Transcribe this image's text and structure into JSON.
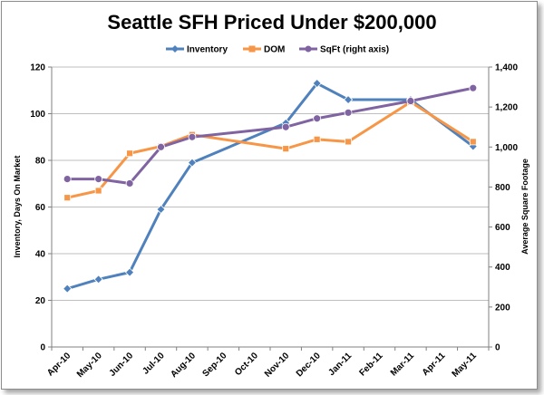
{
  "chart_data": {
    "type": "line",
    "title": "Seattle SFH Priced Under $200,000",
    "categories": [
      "Apr-10",
      "May-10",
      "Jun-10",
      "Jul-10",
      "Aug-10",
      "Sep-10",
      "Oct-10",
      "Nov-10",
      "Dec-10",
      "Jan-11",
      "Feb-11",
      "Mar-11",
      "Apr-11",
      "May-11"
    ],
    "ylabel": "Inventory, Days On Market",
    "y2label": "Average Square Footage",
    "ylim": [
      0,
      120
    ],
    "y2lim": [
      0,
      1400
    ],
    "yticks": [
      0,
      20,
      40,
      60,
      80,
      100,
      120
    ],
    "y2ticks": [
      "0",
      "200",
      "400",
      "600",
      "800",
      "1,000",
      "1,200",
      "1,400"
    ],
    "legend_position": "top",
    "grid": "horizontal",
    "series": [
      {
        "name": "Inventory",
        "axis": "left",
        "color": "#4f81bd",
        "marker": "diamond",
        "values": [
          25,
          29,
          32,
          59,
          79,
          null,
          null,
          96,
          113,
          106,
          null,
          106,
          null,
          86
        ]
      },
      {
        "name": "DOM",
        "axis": "left",
        "color": "#f79646",
        "marker": "square",
        "values": [
          64,
          67,
          83,
          86,
          91,
          null,
          null,
          85,
          89,
          88,
          null,
          105,
          null,
          88
        ]
      },
      {
        "name": "SqFt (right axis)",
        "axis": "right",
        "color": "#8064a2",
        "marker": "circle",
        "values": [
          840,
          840,
          818,
          1000,
          1050,
          null,
          null,
          1100,
          1143,
          1172,
          null,
          1230,
          null,
          1295
        ]
      }
    ]
  }
}
